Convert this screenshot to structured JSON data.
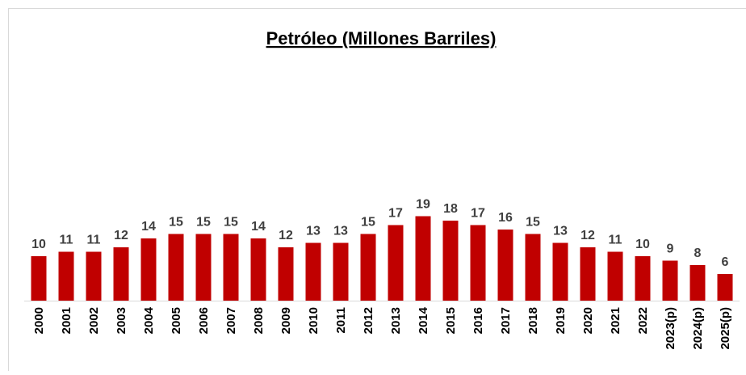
{
  "chart_data": {
    "type": "bar",
    "title": "Petróleo (Millones Barriles)",
    "categories": [
      "2000",
      "2001",
      "2002",
      "2003",
      "2004",
      "2005",
      "2006",
      "2007",
      "2008",
      "2009",
      "2010",
      "2011",
      "2012",
      "2013",
      "2014",
      "2015",
      "2016",
      "2017",
      "2018",
      "2019",
      "2020",
      "2021",
      "2022",
      "2023(p)",
      "2024(p)",
      "2025(p)"
    ],
    "values": [
      10,
      11,
      11,
      12,
      14,
      15,
      15,
      15,
      14,
      12,
      13,
      13,
      15,
      17,
      19,
      18,
      17,
      16,
      15,
      13,
      12,
      11,
      10,
      9,
      8,
      6
    ],
    "color": "#c00000"
  }
}
